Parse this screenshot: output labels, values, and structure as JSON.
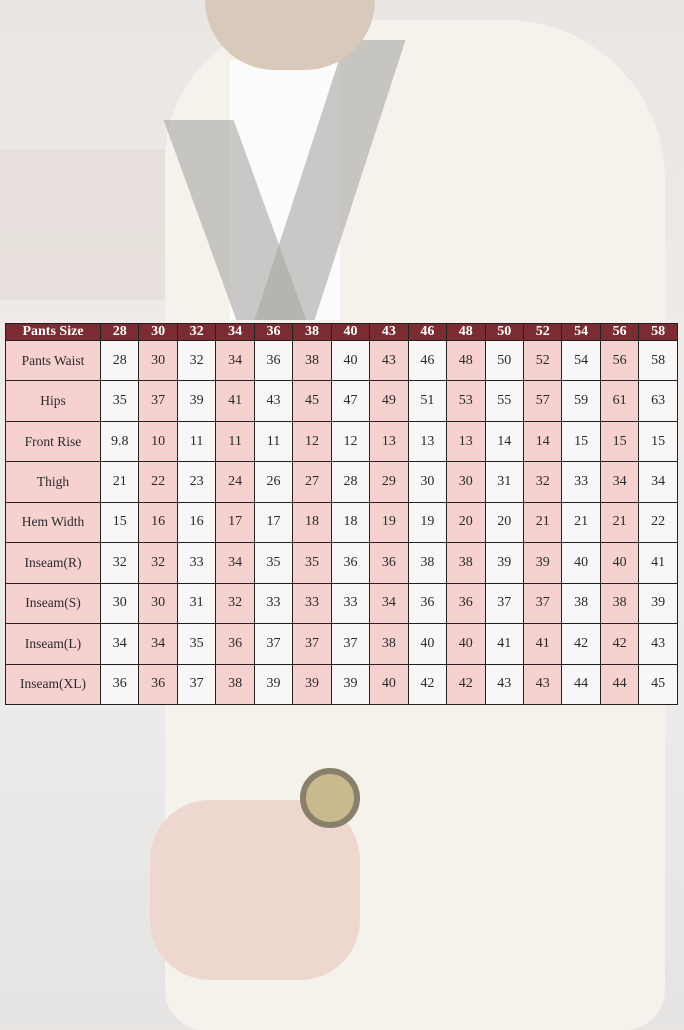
{
  "colors": {
    "header": "#7a2c32",
    "pink": "#f6d1d0",
    "white": "#f8f6f6"
  },
  "table": {
    "header_label": "Pants Size",
    "sizes": [
      "28",
      "30",
      "32",
      "34",
      "36",
      "38",
      "40",
      "43",
      "46",
      "48",
      "50",
      "52",
      "54",
      "56",
      "58"
    ],
    "rows": [
      {
        "label": "Pants Waist",
        "values": [
          "28",
          "30",
          "32",
          "34",
          "36",
          "38",
          "40",
          "43",
          "46",
          "48",
          "50",
          "52",
          "54",
          "56",
          "58"
        ]
      },
      {
        "label": "Hips",
        "values": [
          "35",
          "37",
          "39",
          "41",
          "43",
          "45",
          "47",
          "49",
          "51",
          "53",
          "55",
          "57",
          "59",
          "61",
          "63"
        ]
      },
      {
        "label": "Front Rise",
        "values": [
          "9.8",
          "10",
          "11",
          "11",
          "11",
          "12",
          "12",
          "13",
          "13",
          "13",
          "14",
          "14",
          "15",
          "15",
          "15"
        ]
      },
      {
        "label": "Thigh",
        "values": [
          "21",
          "22",
          "23",
          "24",
          "26",
          "27",
          "28",
          "29",
          "30",
          "30",
          "31",
          "32",
          "33",
          "34",
          "34"
        ]
      },
      {
        "label": "Hem Width",
        "values": [
          "15",
          "16",
          "16",
          "17",
          "17",
          "18",
          "18",
          "19",
          "19",
          "20",
          "20",
          "21",
          "21",
          "21",
          "22"
        ]
      },
      {
        "label": "Inseam(R)",
        "values": [
          "32",
          "32",
          "33",
          "34",
          "35",
          "35",
          "36",
          "36",
          "38",
          "38",
          "39",
          "39",
          "40",
          "40",
          "41"
        ]
      },
      {
        "label": "Inseam(S)",
        "values": [
          "30",
          "30",
          "31",
          "32",
          "33",
          "33",
          "33",
          "34",
          "36",
          "36",
          "37",
          "37",
          "38",
          "38",
          "39"
        ]
      },
      {
        "label": "Inseam(L)",
        "values": [
          "34",
          "34",
          "35",
          "36",
          "37",
          "37",
          "37",
          "38",
          "40",
          "40",
          "41",
          "41",
          "42",
          "42",
          "43"
        ]
      },
      {
        "label": "Inseam(XL)",
        "values": [
          "36",
          "36",
          "37",
          "38",
          "39",
          "39",
          "39",
          "40",
          "42",
          "42",
          "43",
          "43",
          "44",
          "44",
          "45"
        ]
      }
    ]
  }
}
